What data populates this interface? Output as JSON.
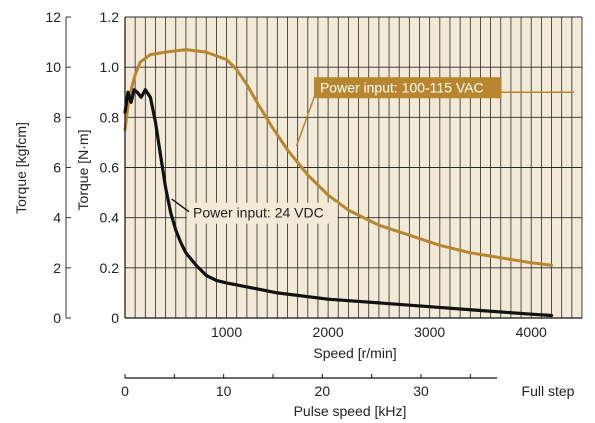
{
  "chart_data": {
    "type": "line",
    "xlabel": "Speed [r/min]",
    "ylabel": "Torque [N·m]",
    "y2label": "Torque [kgfcm]",
    "x2label": "Pulse speed [kHz]",
    "xlim": [
      0,
      4500
    ],
    "ylim": [
      0,
      1.2
    ],
    "y2lim": [
      0,
      12
    ],
    "x2lim": [
      0,
      37.5
    ],
    "xticks": [
      1000,
      2000,
      3000,
      4000
    ],
    "xtick_labels": [
      "1000",
      "2000",
      "3000",
      "4000"
    ],
    "yticks": [
      0,
      0.2,
      0.4,
      0.6,
      0.8,
      1.0,
      1.2
    ],
    "ytick_labels": [
      "0",
      "0.2",
      "0.4",
      "0.6",
      "0.8",
      "1.0",
      "1.2"
    ],
    "y2ticks": [
      0,
      2,
      4,
      6,
      8,
      10,
      12
    ],
    "y2tick_labels": [
      "0",
      "2",
      "4",
      "6",
      "8",
      "10",
      "12"
    ],
    "x2ticks": [
      0,
      10,
      20,
      30
    ],
    "x2tick_labels": [
      "0",
      "10",
      "20",
      "30"
    ],
    "x2_end_label": "Full step",
    "grid": true,
    "background": "#f2e9d6",
    "series": [
      {
        "name": "Power input: 100-115 VAC",
        "color": "#b8862e",
        "x": [
          0,
          40,
          100,
          150,
          250,
          400,
          600,
          800,
          1000,
          1100,
          1200,
          1300,
          1450,
          1600,
          1800,
          2000,
          2200,
          2500,
          2800,
          3100,
          3400,
          3700,
          4000,
          4200
        ],
        "y": [
          0.75,
          0.88,
          0.97,
          1.02,
          1.05,
          1.06,
          1.07,
          1.06,
          1.03,
          0.99,
          0.93,
          0.86,
          0.76,
          0.67,
          0.57,
          0.49,
          0.43,
          0.37,
          0.33,
          0.29,
          0.26,
          0.24,
          0.22,
          0.21
        ]
      },
      {
        "name": "Power input: 24 VDC",
        "color": "#111111",
        "x": [
          0,
          30,
          60,
          90,
          120,
          160,
          200,
          250,
          300,
          350,
          400,
          450,
          500,
          550,
          600,
          700,
          800,
          900,
          1000,
          1500,
          2000,
          2500,
          3000,
          3500,
          4000,
          4200
        ],
        "y": [
          0.82,
          0.9,
          0.86,
          0.91,
          0.9,
          0.88,
          0.91,
          0.88,
          0.78,
          0.65,
          0.52,
          0.42,
          0.35,
          0.3,
          0.26,
          0.21,
          0.17,
          0.15,
          0.14,
          0.1,
          0.075,
          0.06,
          0.045,
          0.03,
          0.015,
          0.01
        ]
      }
    ],
    "annotations": [
      {
        "text": "Power input: 100-115 VAC",
        "series": 0,
        "point_x": 1650,
        "point_y": 0.67,
        "label_x": 1900,
        "label_y": 0.9
      },
      {
        "text": "Power input: 24 VDC",
        "series": 1,
        "point_x": 430,
        "point_y": 0.47,
        "label_x": 650,
        "label_y": 0.4
      }
    ]
  }
}
